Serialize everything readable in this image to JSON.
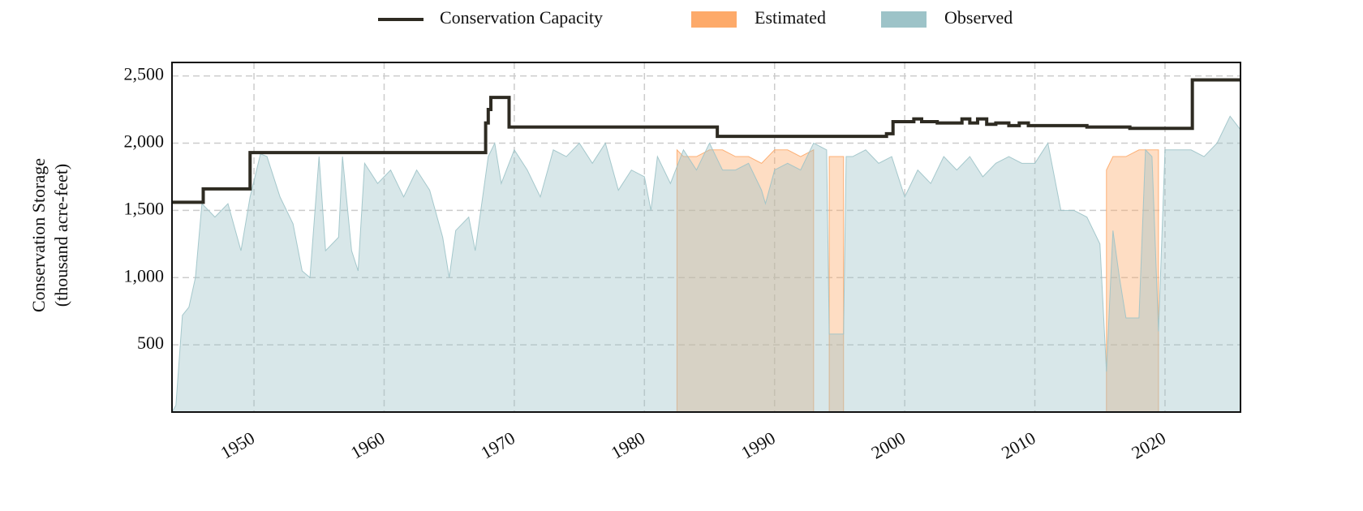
{
  "chart_data": {
    "type": "area",
    "ylabel": [
      "Conservation Storage",
      "(thousand acre-feet)"
    ],
    "xlim": [
      1943.7,
      2025.8
    ],
    "xticks": [
      1950,
      1960,
      1970,
      1980,
      1990,
      2000,
      2010,
      2020
    ],
    "ylim": [
      0,
      2600
    ],
    "yticks": [
      500,
      {
        "value": 1000,
        "label": "1,000"
      },
      {
        "value": 1500,
        "label": "1,500"
      },
      {
        "value": 2000,
        "label": "2,000"
      },
      {
        "value": 2500,
        "label": "2,500"
      }
    ],
    "grid": true,
    "legend": "top",
    "series": [
      {
        "name": "Conservation Capacity",
        "kind": "step",
        "color": "#2e2b22",
        "x": [
          1943.7,
          1946.1,
          1949.7,
          1967.8,
          1968.0,
          1968.2,
          1969.6,
          1985.6,
          1998.6,
          1999.1,
          2000.7,
          2001.3,
          2002.5,
          2004.4,
          2005.0,
          2005.6,
          2006.3,
          2007.0,
          2008.0,
          2008.8,
          2009.5,
          2010.3,
          2014.0,
          2017.3,
          2022.1,
          2025.8
        ],
        "values": [
          1560,
          1660,
          1930,
          2150,
          2250,
          2340,
          2120,
          2050,
          2070,
          2160,
          2180,
          2160,
          2150,
          2180,
          2150,
          2180,
          2140,
          2150,
          2130,
          2150,
          2130,
          2130,
          2120,
          2110,
          2470,
          2470
        ]
      },
      {
        "name": "Estimated",
        "kind": "area",
        "color": "#fdaa6a",
        "x": [
          1982.5,
          1983,
          1984,
          1985,
          1986,
          1987,
          1988,
          1989,
          1990,
          1991,
          1992,
          1993,
          1993.5,
          1994.2,
          1994.25,
          1995.3,
          2015.2,
          2015.5,
          2016,
          2017,
          2018,
          2019,
          2019.5
        ],
        "values": [
          1950,
          1900,
          1900,
          1950,
          1950,
          1900,
          1900,
          1850,
          1950,
          1950,
          1900,
          1950,
          null,
          1900,
          1900,
          1900,
          null,
          1800,
          1900,
          1900,
          1950,
          1950,
          1950
        ]
      },
      {
        "name": "Observed",
        "kind": "area",
        "color": "#9dc3c8",
        "x": [
          1943.7,
          1944,
          1944.5,
          1945,
          1945.5,
          1946,
          1947,
          1948,
          1949,
          1949.7,
          1950.5,
          1951,
          1952,
          1953,
          1953.7,
          1954.3,
          1955,
          1955.5,
          1956.5,
          1956.8,
          1957.5,
          1958,
          1958.5,
          1959.5,
          1960.5,
          1961.5,
          1962.5,
          1963.5,
          1964.5,
          1965,
          1965.5,
          1966.5,
          1967,
          1967.5,
          1968,
          1968.5,
          1969,
          1970,
          1971,
          1972,
          1973,
          1974,
          1975,
          1976,
          1977,
          1978,
          1979,
          1980,
          1980.5,
          1981,
          1982,
          1983,
          1984,
          1985,
          1986,
          1987,
          1988,
          1989,
          1989.3,
          1990,
          1991,
          1992,
          1993,
          1994,
          1994.2,
          1995.3,
          1995.5,
          1996,
          1997,
          1998,
          1999,
          2000,
          2001,
          2002,
          2003,
          2004,
          2005,
          2006,
          2007,
          2008,
          2009,
          2010,
          2011,
          2012,
          2013,
          2014,
          2015,
          2015.5,
          2016,
          2016.5,
          2017,
          2018,
          2018.5,
          2019,
          2019.5,
          2020,
          2021,
          2022,
          2023,
          2024,
          2025,
          2025.8
        ],
        "values": [
          0,
          50,
          720,
          780,
          1000,
          1550,
          1450,
          1550,
          1200,
          1600,
          1920,
          1900,
          1600,
          1400,
          1050,
          1000,
          1900,
          1200,
          1300,
          1900,
          1200,
          1050,
          1850,
          1700,
          1800,
          1600,
          1800,
          1650,
          1300,
          1000,
          1350,
          1450,
          1200,
          1550,
          1900,
          2000,
          1700,
          1950,
          1800,
          1600,
          1950,
          1900,
          2000,
          1850,
          2000,
          1650,
          1800,
          1750,
          1500,
          1900,
          1700,
          1950,
          1800,
          2000,
          1800,
          1800,
          1850,
          1650,
          1550,
          1800,
          1850,
          1800,
          2000,
          1950,
          580,
          580,
          1900,
          1900,
          1950,
          1850,
          1900,
          1600,
          1800,
          1700,
          1900,
          1800,
          1900,
          1750,
          1850,
          1900,
          1850,
          1850,
          2000,
          1500,
          1500,
          1450,
          1250,
          300,
          1350,
          1000,
          700,
          700,
          1950,
          1900,
          600,
          1950,
          1950,
          1950,
          1900,
          2000,
          2200,
          2100
        ]
      }
    ]
  }
}
